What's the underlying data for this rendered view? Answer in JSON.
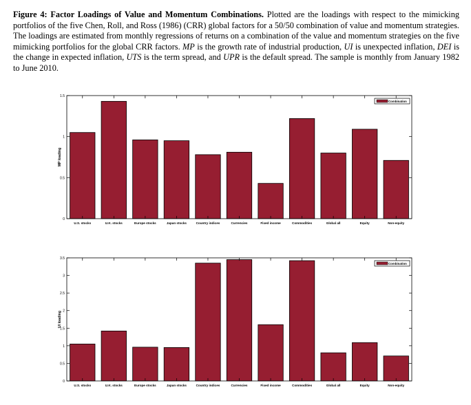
{
  "caption": {
    "label": "Figure 4:",
    "title": "Factor Loadings of Value and Momentum Combinations.",
    "text1": "Plotted are the loadings with respect to the mimicking portfolios of the five Chen, Roll, and Ross (1986) (CRR) global factors for a 50/50 combination of value and momentum strategies. The loadings are estimated from monthly regressions of returns on a combination of the value and momentum strategies on the five mimicking portfolios for the global CRR factors.",
    "mp": "MP",
    "text2": "is the growth rate of industrial production,",
    "ui": "UI",
    "text3": "is unexpected inflation,",
    "dei": "DEI",
    "text4": "is the change in expected inflation,",
    "uts": "UTS",
    "text5": "is the term spread, and",
    "upr": "UPR",
    "text6": "is the default spread. The sample is monthly from January 1982 to June 2010."
  },
  "chart_data": [
    {
      "type": "bar",
      "categories": [
        "U.S. stocks",
        "U.K. stocks",
        "Europe stocks",
        "Japan stocks",
        "Country indices",
        "Currencies",
        "Fixed income",
        "Commodities",
        "Global all",
        "Equity",
        "Non-equity"
      ],
      "series": [
        {
          "name": "Combination",
          "values": [
            1.05,
            1.43,
            0.96,
            0.95,
            0.78,
            0.81,
            0.43,
            1.22,
            0.8,
            1.09,
            0.71
          ]
        }
      ],
      "ylabel": "MP loading",
      "ylim": [
        0,
        1.5
      ],
      "yticks": [
        0,
        0.5,
        1,
        1.5
      ],
      "ytick_labels": [
        "0",
        "0.5",
        "1",
        "1.5"
      ],
      "bar_color": "#961e31",
      "legend": "top-right"
    },
    {
      "type": "bar",
      "categories": [
        "U.S. stocks",
        "U.K. stocks",
        "Europe stocks",
        "Japan stocks",
        "Country indices",
        "Currencies",
        "Fixed income",
        "Commodities",
        "Global all",
        "Equity",
        "Non-equity"
      ],
      "series": [
        {
          "name": "Combination",
          "values": [
            1.05,
            1.42,
            0.96,
            0.95,
            3.35,
            3.45,
            1.6,
            3.42,
            0.8,
            1.09,
            0.71
          ]
        }
      ],
      "ylabel": "UI loading",
      "ylim": [
        0,
        3.5
      ],
      "yticks": [
        0,
        0.5,
        1,
        1.5,
        2,
        2.5,
        3,
        3.5
      ],
      "ytick_labels": [
        "0",
        "0.5",
        "1",
        "1.5",
        "2",
        "2.5",
        "3",
        "3.5"
      ],
      "bar_color": "#961e31",
      "legend": "top-right"
    }
  ]
}
